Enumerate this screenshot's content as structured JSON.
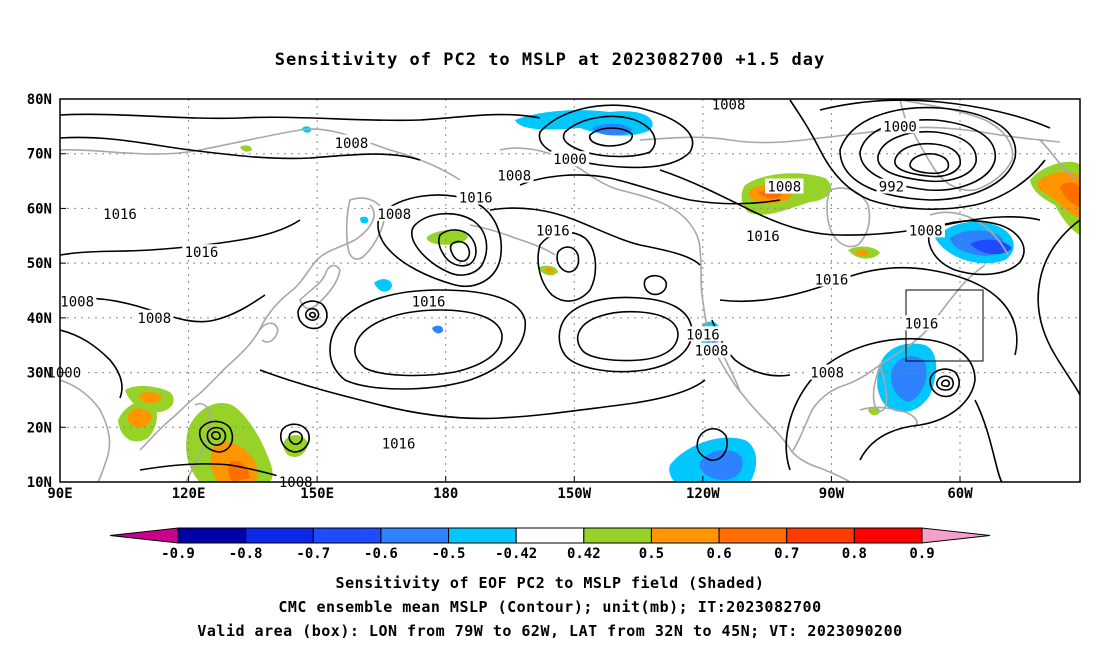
{
  "title": "Sensitivity of PC2 to MSLP at 2023082700 +1.5 day",
  "axes": {
    "lon_labels": [
      "90E",
      "120E",
      "150E",
      "180",
      "150W",
      "120W",
      "90W",
      "60W"
    ],
    "lat_labels": [
      "80N",
      "70N",
      "60N",
      "50N",
      "40N",
      "30N",
      "20N",
      "10N"
    ]
  },
  "contour_labels": [
    {
      "text": "1008",
      "lon": 246,
      "lat": 79
    },
    {
      "text": "1000",
      "lon": 286,
      "lat": 75
    },
    {
      "text": "1008",
      "lon": 158,
      "lat": 72
    },
    {
      "text": "1000",
      "lon": 209,
      "lat": 69
    },
    {
      "text": "1008",
      "lon": 196,
      "lat": 66
    },
    {
      "text": "992",
      "lon": 284,
      "lat": 64
    },
    {
      "text": "1008",
      "lon": 259,
      "lat": 64
    },
    {
      "text": "1016",
      "lon": 187,
      "lat": 62
    },
    {
      "text": "1016",
      "lon": 104,
      "lat": 59
    },
    {
      "text": "1008",
      "lon": 168,
      "lat": 59
    },
    {
      "text": "1016",
      "lon": 205,
      "lat": 56
    },
    {
      "text": "1016",
      "lon": 254,
      "lat": 55
    },
    {
      "text": "1008",
      "lon": 292,
      "lat": 56
    },
    {
      "text": "1016",
      "lon": 123,
      "lat": 52
    },
    {
      "text": "1016",
      "lon": 270,
      "lat": 47
    },
    {
      "text": "1008",
      "lon": 94,
      "lat": 43
    },
    {
      "text": "1016",
      "lon": 176,
      "lat": 43
    },
    {
      "text": "1008",
      "lon": 112,
      "lat": 40
    },
    {
      "text": "1016",
      "lon": 291,
      "lat": 39
    },
    {
      "text": "1016",
      "lon": 240,
      "lat": 37
    },
    {
      "text": "1008",
      "lon": 242,
      "lat": 34
    },
    {
      "text": "1000",
      "lon": 91,
      "lat": 30
    },
    {
      "text": "1008",
      "lon": 269,
      "lat": 30
    },
    {
      "text": "1016",
      "lon": 169,
      "lat": 17
    },
    {
      "text": "1008",
      "lon": 145,
      "lat": 10
    }
  ],
  "colorbar": {
    "labels": [
      "-0.9",
      "-0.8",
      "-0.7",
      "-0.6",
      "-0.5",
      "-0.42",
      "0.42",
      "0.5",
      "0.6",
      "0.7",
      "0.8",
      "0.9"
    ],
    "colors": [
      "#0000aa",
      "#0a28e6",
      "#1e4bff",
      "#2d82ff",
      "#00c8ff",
      "#ffffff",
      "#96d228",
      "#ff9600",
      "#ff6e00",
      "#ff3c00",
      "#ff0000"
    ],
    "low_end_color": "#c8008c",
    "high_end_color": "#f5a0c8"
  },
  "footer": {
    "line1": "Sensitivity of EOF PC2 to MSLP field (Shaded)",
    "line2": "CMC ensemble mean MSLP (Contour); unit(mb); IT:2023082700",
    "line3": "Valid area (box): LON from 79W to 62W, LAT from 32N to 45N; VT: 2023090200"
  }
}
